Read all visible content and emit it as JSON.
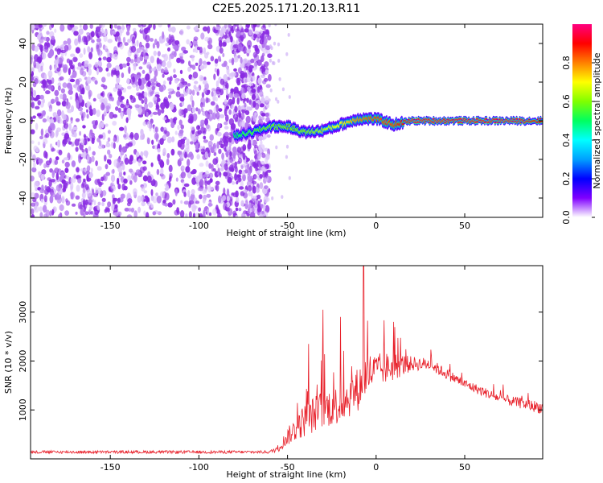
{
  "figure_title": "C2E5.2025.171.20.13.R11",
  "chart_data": [
    {
      "type": "heatmap",
      "xlabel": "Height of straight line (km)",
      "ylabel": "Frequency (Hz)",
      "xlim": [
        -195,
        94
      ],
      "ylim": [
        -50,
        50
      ],
      "xticks": [
        -150,
        -100,
        -50,
        0,
        50
      ],
      "yticks": [
        -40,
        -20,
        0,
        20,
        40
      ],
      "colorbar": {
        "label": "Normalized spectral amplitude",
        "ticks": [
          "0.0",
          "0.2",
          "0.4",
          "0.6",
          "0.8"
        ],
        "range": [
          0,
          1
        ],
        "colors": [
          "#ffffff",
          "#8000ff",
          "#0000ff",
          "#00a0ff",
          "#00ffff",
          "#00ff60",
          "#80ff00",
          "#ffff00",
          "#ff8000",
          "#ff0000",
          "#ff0080"
        ]
      },
      "noise_region": {
        "x_from": -195,
        "x_to": -60,
        "amplitude": 0.1
      },
      "signal_trace": [
        {
          "x": -80,
          "y": -8,
          "amp": 0.5
        },
        {
          "x": -70,
          "y": -6,
          "amp": 0.55
        },
        {
          "x": -60,
          "y": -3,
          "amp": 0.6
        },
        {
          "x": -50,
          "y": -3,
          "amp": 0.6
        },
        {
          "x": -40,
          "y": -6,
          "amp": 0.6
        },
        {
          "x": -30,
          "y": -5,
          "amp": 0.65
        },
        {
          "x": -20,
          "y": -2,
          "amp": 0.7
        },
        {
          "x": -10,
          "y": 1,
          "amp": 0.8
        },
        {
          "x": 0,
          "y": 1,
          "amp": 0.85
        },
        {
          "x": 10,
          "y": -2,
          "amp": 0.85
        },
        {
          "x": 20,
          "y": 0,
          "amp": 0.95
        },
        {
          "x": 40,
          "y": 0,
          "amp": 0.95
        },
        {
          "x": 60,
          "y": 0,
          "amp": 0.95
        },
        {
          "x": 80,
          "y": 0,
          "amp": 0.95
        },
        {
          "x": 94,
          "y": 0,
          "amp": 0.9
        }
      ]
    },
    {
      "type": "line",
      "xlabel": "Height of straight line (km)",
      "ylabel": "SNR (10 * v/v)",
      "xlim": [
        -195,
        94
      ],
      "ylim": [
        0,
        3950
      ],
      "xticks": [
        -150,
        -100,
        -50,
        0,
        50
      ],
      "yticks": [
        1000,
        2000,
        3000
      ],
      "color": "#e8202a",
      "envelope": [
        {
          "x": -195,
          "base": 130,
          "spread": 60
        },
        {
          "x": -60,
          "base": 130,
          "spread": 60
        },
        {
          "x": -55,
          "base": 200,
          "spread": 150
        },
        {
          "x": -50,
          "base": 400,
          "spread": 350
        },
        {
          "x": -40,
          "base": 700,
          "spread": 700
        },
        {
          "x": -30,
          "base": 900,
          "spread": 800
        },
        {
          "x": -20,
          "base": 1000,
          "spread": 800
        },
        {
          "x": -10,
          "base": 1300,
          "spread": 900
        },
        {
          "x": -5,
          "base": 1600,
          "spread": 900
        },
        {
          "x": 0,
          "base": 1700,
          "spread": 700
        },
        {
          "x": 10,
          "base": 1800,
          "spread": 600
        },
        {
          "x": 20,
          "base": 1900,
          "spread": 300
        },
        {
          "x": 30,
          "base": 1900,
          "spread": 250
        },
        {
          "x": 50,
          "base": 1500,
          "spread": 200
        },
        {
          "x": 70,
          "base": 1200,
          "spread": 200
        },
        {
          "x": 94,
          "base": 1000,
          "spread": 250
        }
      ],
      "peaks": [
        {
          "x": -7,
          "y": 3950
        },
        {
          "x": -30,
          "y": 3050
        },
        {
          "x": -20,
          "y": 2900
        },
        {
          "x": 10,
          "y": 2800
        },
        {
          "x": -38,
          "y": 2350
        }
      ]
    }
  ]
}
